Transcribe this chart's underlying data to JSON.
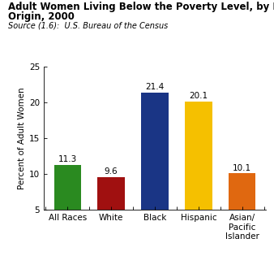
{
  "title_line1": "Adult Women Living Below the Poverty Level, by Race and Hispanic",
  "title_line2": "Origin, 2000",
  "source": "Source (1.6):  U.S. Bureau of the Census",
  "categories": [
    "All Races",
    "White",
    "Black",
    "Hispanic",
    "Asian/\nPacific\nIslander"
  ],
  "values": [
    11.3,
    9.6,
    21.4,
    20.1,
    10.1
  ],
  "bar_colors": [
    "#2a8a20",
    "#a01010",
    "#1a3585",
    "#f5c000",
    "#e06810"
  ],
  "ylabel": "Percent of Adult Women",
  "ylim": [
    5,
    25
  ],
  "yticks": [
    5,
    10,
    15,
    20,
    25
  ],
  "background_color": "#ffffff",
  "title_fontsize": 8.5,
  "source_fontsize": 7.0,
  "label_fontsize": 7.5,
  "tick_fontsize": 7.5,
  "ylabel_fontsize": 7.5,
  "value_fontsize": 7.5
}
